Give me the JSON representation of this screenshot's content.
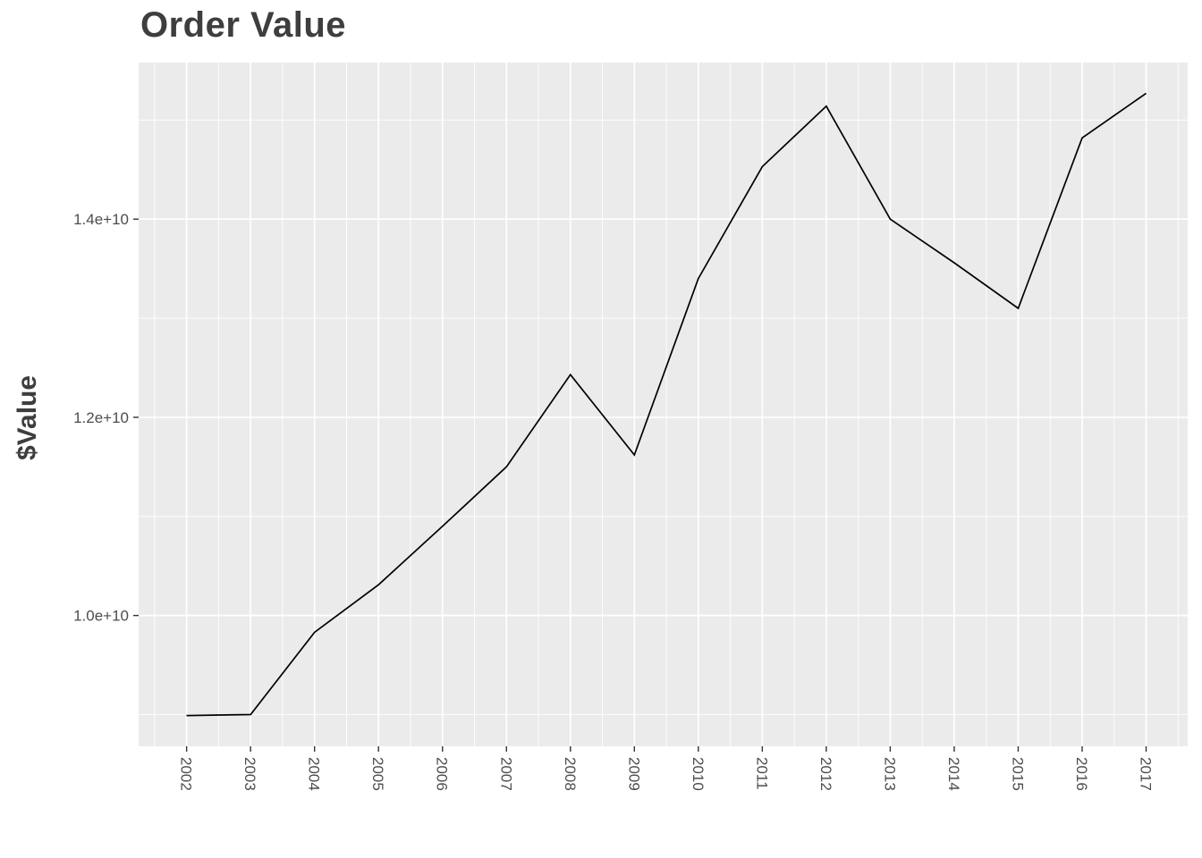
{
  "chart": {
    "title": "Order Value",
    "y_axis_title": "$Value",
    "colors": {
      "page_bg": "#FFFFFF",
      "panel_bg": "#EBEBEB",
      "grid": "#FFFFFF",
      "line": "#000000",
      "axis_text": "#4D4D4D",
      "title_text": "#3E3E3E",
      "tick_mark": "#333333"
    }
  },
  "chart_data": {
    "type": "line",
    "title": "Order Value",
    "xlabel": "",
    "ylabel": "$Value",
    "x": [
      2002,
      2003,
      2004,
      2005,
      2006,
      2007,
      2008,
      2009,
      2010,
      2011,
      2012,
      2013,
      2014,
      2015,
      2016,
      2017
    ],
    "values": [
      8990000000.0,
      9000000000.0,
      9830000000.0,
      10310000000.0,
      10900000000.0,
      11500000000.0,
      12430000000.0,
      11620000000.0,
      13400000000.0,
      14530000000.0,
      15140000000.0,
      14000000000.0,
      13560000000.0,
      13100000000.0,
      14820000000.0,
      15270000000.0
    ],
    "x_tick_labels": [
      "2002",
      "2003",
      "2004",
      "2005",
      "2006",
      "2007",
      "2008",
      "2009",
      "2010",
      "2011",
      "2012",
      "2013",
      "2014",
      "2015",
      "2016",
      "2017"
    ],
    "y_tick_labels": [
      "1.0e+10",
      "1.2e+10",
      "1.4e+10"
    ],
    "y_tick_values": [
      10000000000.0,
      12000000000.0,
      14000000000.0
    ],
    "y_minor_values": [
      9000000000.0,
      11000000000.0,
      13000000000.0,
      15000000000.0
    ],
    "xlim": [
      2001.25,
      2017.65
    ],
    "ylim": [
      8680000000.0,
      15580000000.0
    ],
    "grid": true,
    "legend": "none",
    "series_name": "Order Value"
  }
}
